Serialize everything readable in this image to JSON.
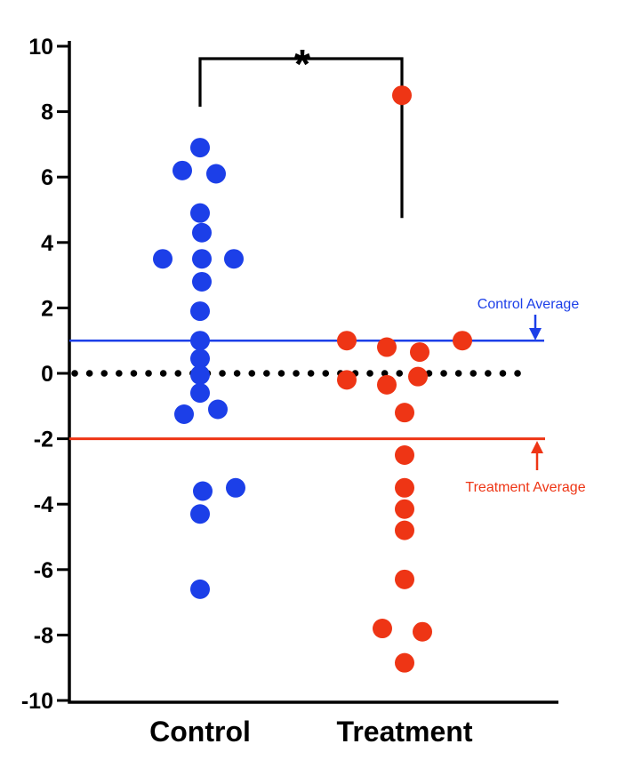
{
  "figure": {
    "background": "#ffffff"
  },
  "chart_data": {
    "type": "scatter",
    "title": "",
    "xlabel": "",
    "ylabel": "",
    "ylim": [
      -10,
      10
    ],
    "yticks": [
      10,
      8,
      6,
      4,
      2,
      0,
      -2,
      -4,
      -6,
      -8,
      -10
    ],
    "grid": false,
    "legend_position": "none",
    "axis_color": "#000000",
    "zero_line": {
      "y": 0,
      "style": "dotted",
      "color": "#000000"
    },
    "significance": {
      "label": "*",
      "from_group": "Control",
      "to_group": "Treatment"
    },
    "groups": [
      {
        "label": "Control",
        "color": "#1c3fe8",
        "average": 1.0,
        "average_label": "Control Average",
        "points": [
          {
            "dx": 0,
            "y": 6.9
          },
          {
            "dx": -20,
            "y": 6.2
          },
          {
            "dx": 18,
            "y": 6.1
          },
          {
            "dx": 0,
            "y": 4.9
          },
          {
            "dx": 2,
            "y": 4.3
          },
          {
            "dx": -42,
            "y": 3.5
          },
          {
            "dx": 2,
            "y": 3.5
          },
          {
            "dx": 38,
            "y": 3.5
          },
          {
            "dx": 2,
            "y": 2.8
          },
          {
            "dx": 0,
            "y": 1.9
          },
          {
            "dx": 0,
            "y": 1.0
          },
          {
            "dx": 0,
            "y": 0.45
          },
          {
            "dx": 0,
            "y": -0.05
          },
          {
            "dx": 0,
            "y": -0.6
          },
          {
            "dx": -18,
            "y": -1.25
          },
          {
            "dx": 20,
            "y": -1.1
          },
          {
            "dx": 3,
            "y": -3.6
          },
          {
            "dx": 40,
            "y": -3.5
          },
          {
            "dx": 0,
            "y": -4.3
          },
          {
            "dx": 0,
            "y": -6.6
          }
        ]
      },
      {
        "label": "Treatment",
        "color": "#ee3515",
        "average": -2.0,
        "average_label": "Treatment Average",
        "points": [
          {
            "dx": -3,
            "y": 8.5
          },
          {
            "dx": -65,
            "y": 1.0
          },
          {
            "dx": -20,
            "y": 0.8
          },
          {
            "dx": 17,
            "y": 0.65
          },
          {
            "dx": 65,
            "y": 1.0
          },
          {
            "dx": -65,
            "y": -0.2
          },
          {
            "dx": -20,
            "y": -0.35
          },
          {
            "dx": 15,
            "y": -0.1
          },
          {
            "dx": 0,
            "y": -1.2
          },
          {
            "dx": 0,
            "y": -2.5
          },
          {
            "dx": 0,
            "y": -3.5
          },
          {
            "dx": 0,
            "y": -4.15
          },
          {
            "dx": 0,
            "y": -4.8
          },
          {
            "dx": 0,
            "y": -6.3
          },
          {
            "dx": -25,
            "y": -7.8
          },
          {
            "dx": 20,
            "y": -7.9
          },
          {
            "dx": 0,
            "y": -8.85
          }
        ]
      }
    ]
  }
}
